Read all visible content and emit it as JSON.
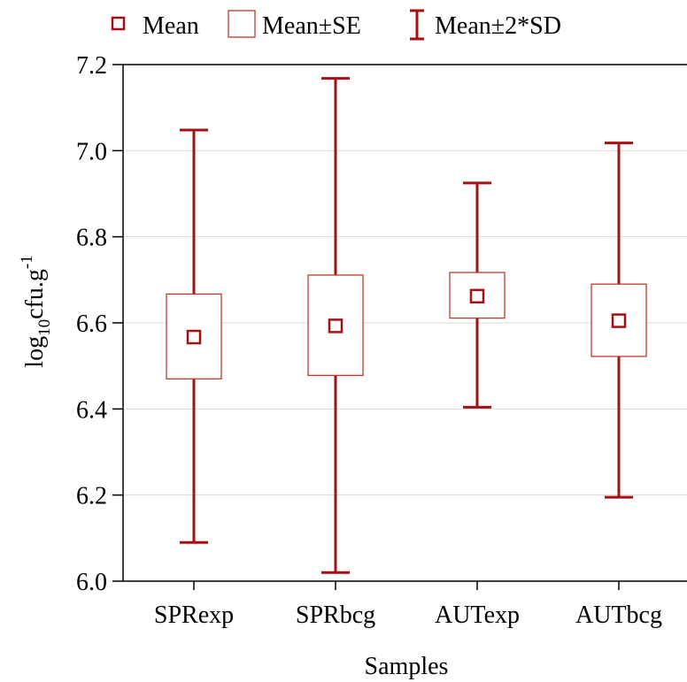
{
  "chart_data": {
    "type": "box",
    "xlabel": "Samples",
    "ylabel": {
      "base": "log",
      "sub": "10",
      "main": "cfu.g",
      "sup": "-1"
    },
    "ylim": [
      6.0,
      7.2
    ],
    "yticks": [
      "6.0",
      "6.2",
      "6.4",
      "6.6",
      "6.8",
      "7.0",
      "7.2"
    ],
    "grid": true,
    "legend_position": "top",
    "legend": {
      "mean": "Mean",
      "se": "Mean±SE",
      "sd": "Mean±2*SD"
    },
    "categories": [
      "SPRexp",
      "SPRbcg",
      "AUTexp",
      "AUTbcg"
    ],
    "mean": [
      6.567,
      6.593,
      6.662,
      6.605
    ],
    "se_low": [
      6.47,
      6.478,
      6.611,
      6.522
    ],
    "se_high": [
      6.667,
      6.711,
      6.717,
      6.69
    ],
    "sd_low": [
      6.09,
      6.02,
      6.404,
      6.195
    ],
    "sd_high": [
      7.048,
      7.168,
      6.925,
      7.018
    ],
    "colors": {
      "whisker": "#a50f15",
      "box": "#c0392b",
      "mean": "#a50f15",
      "grid": "#d9d9d9"
    }
  }
}
